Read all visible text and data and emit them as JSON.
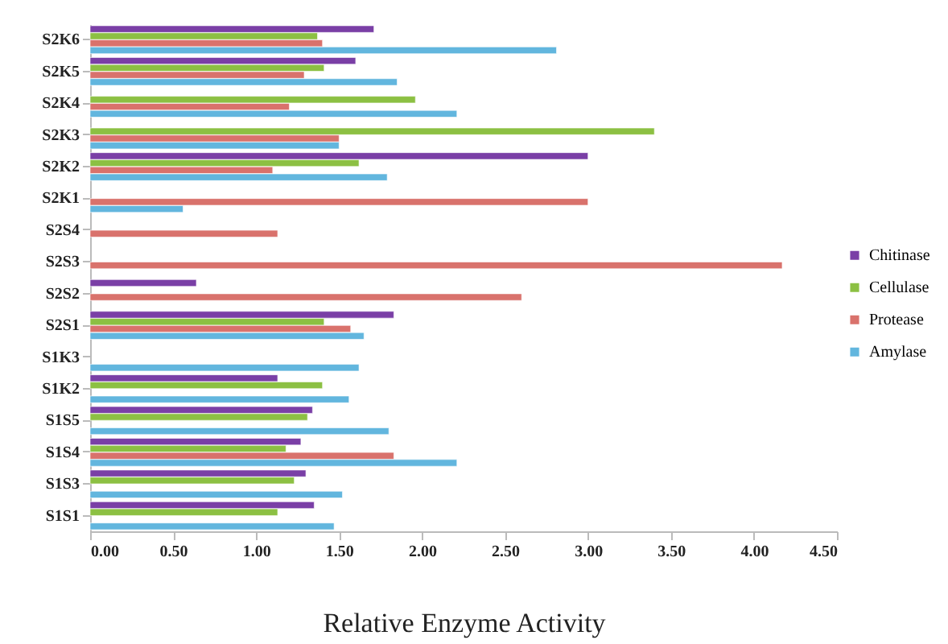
{
  "chart_data": {
    "type": "bar",
    "orientation": "horizontal",
    "xlabel": "Relative Enzyme Activity",
    "categories": [
      "S2K6",
      "S2K5",
      "S2K4",
      "S2K3",
      "S2K2",
      "S2K1",
      "S2S4",
      "S2S3",
      "S2S2",
      "S2S1",
      "S1K3",
      "S1K2",
      "S1S5",
      "S1S4",
      "S1S3",
      "S1S1"
    ],
    "series": [
      {
        "name": "Chitinase",
        "color": "#7a3fa6",
        "values": [
          1.71,
          1.6,
          null,
          null,
          3.0,
          null,
          null,
          null,
          0.64,
          1.83,
          null,
          1.13,
          1.34,
          1.27,
          1.3,
          1.35
        ]
      },
      {
        "name": "Cellulase",
        "color": "#8cc043",
        "values": [
          1.37,
          1.41,
          1.96,
          3.4,
          1.62,
          null,
          null,
          null,
          null,
          1.41,
          null,
          1.4,
          1.31,
          1.18,
          1.23,
          1.13
        ]
      },
      {
        "name": "Protease",
        "color": "#d9726c",
        "values": [
          1.4,
          1.29,
          1.2,
          1.5,
          1.1,
          3.0,
          1.13,
          4.17,
          2.6,
          1.57,
          null,
          null,
          null,
          1.83,
          null,
          null
        ]
      },
      {
        "name": "Amylase",
        "color": "#62b6de",
        "values": [
          2.81,
          1.85,
          2.21,
          1.5,
          1.79,
          0.56,
          null,
          null,
          null,
          1.65,
          1.62,
          1.56,
          1.8,
          2.21,
          1.52,
          1.47
        ]
      }
    ],
    "xlim": [
      0,
      4.5
    ],
    "xticks": [
      {
        "value": 0,
        "label": "0.00"
      },
      {
        "value": 0.5,
        "label": "0.50"
      },
      {
        "value": 1,
        "label": "1.00"
      },
      {
        "value": 1.5,
        "label": "1.50"
      },
      {
        "value": 2,
        "label": "2.00"
      },
      {
        "value": 2.5,
        "label": "2.50"
      },
      {
        "value": 3,
        "label": "3.00"
      },
      {
        "value": 3.5,
        "label": "3.50"
      },
      {
        "value": 4,
        "label": "4.00"
      },
      {
        "value": 4.5,
        "label": "4.50"
      }
    ],
    "grid": false,
    "legend": "right"
  }
}
